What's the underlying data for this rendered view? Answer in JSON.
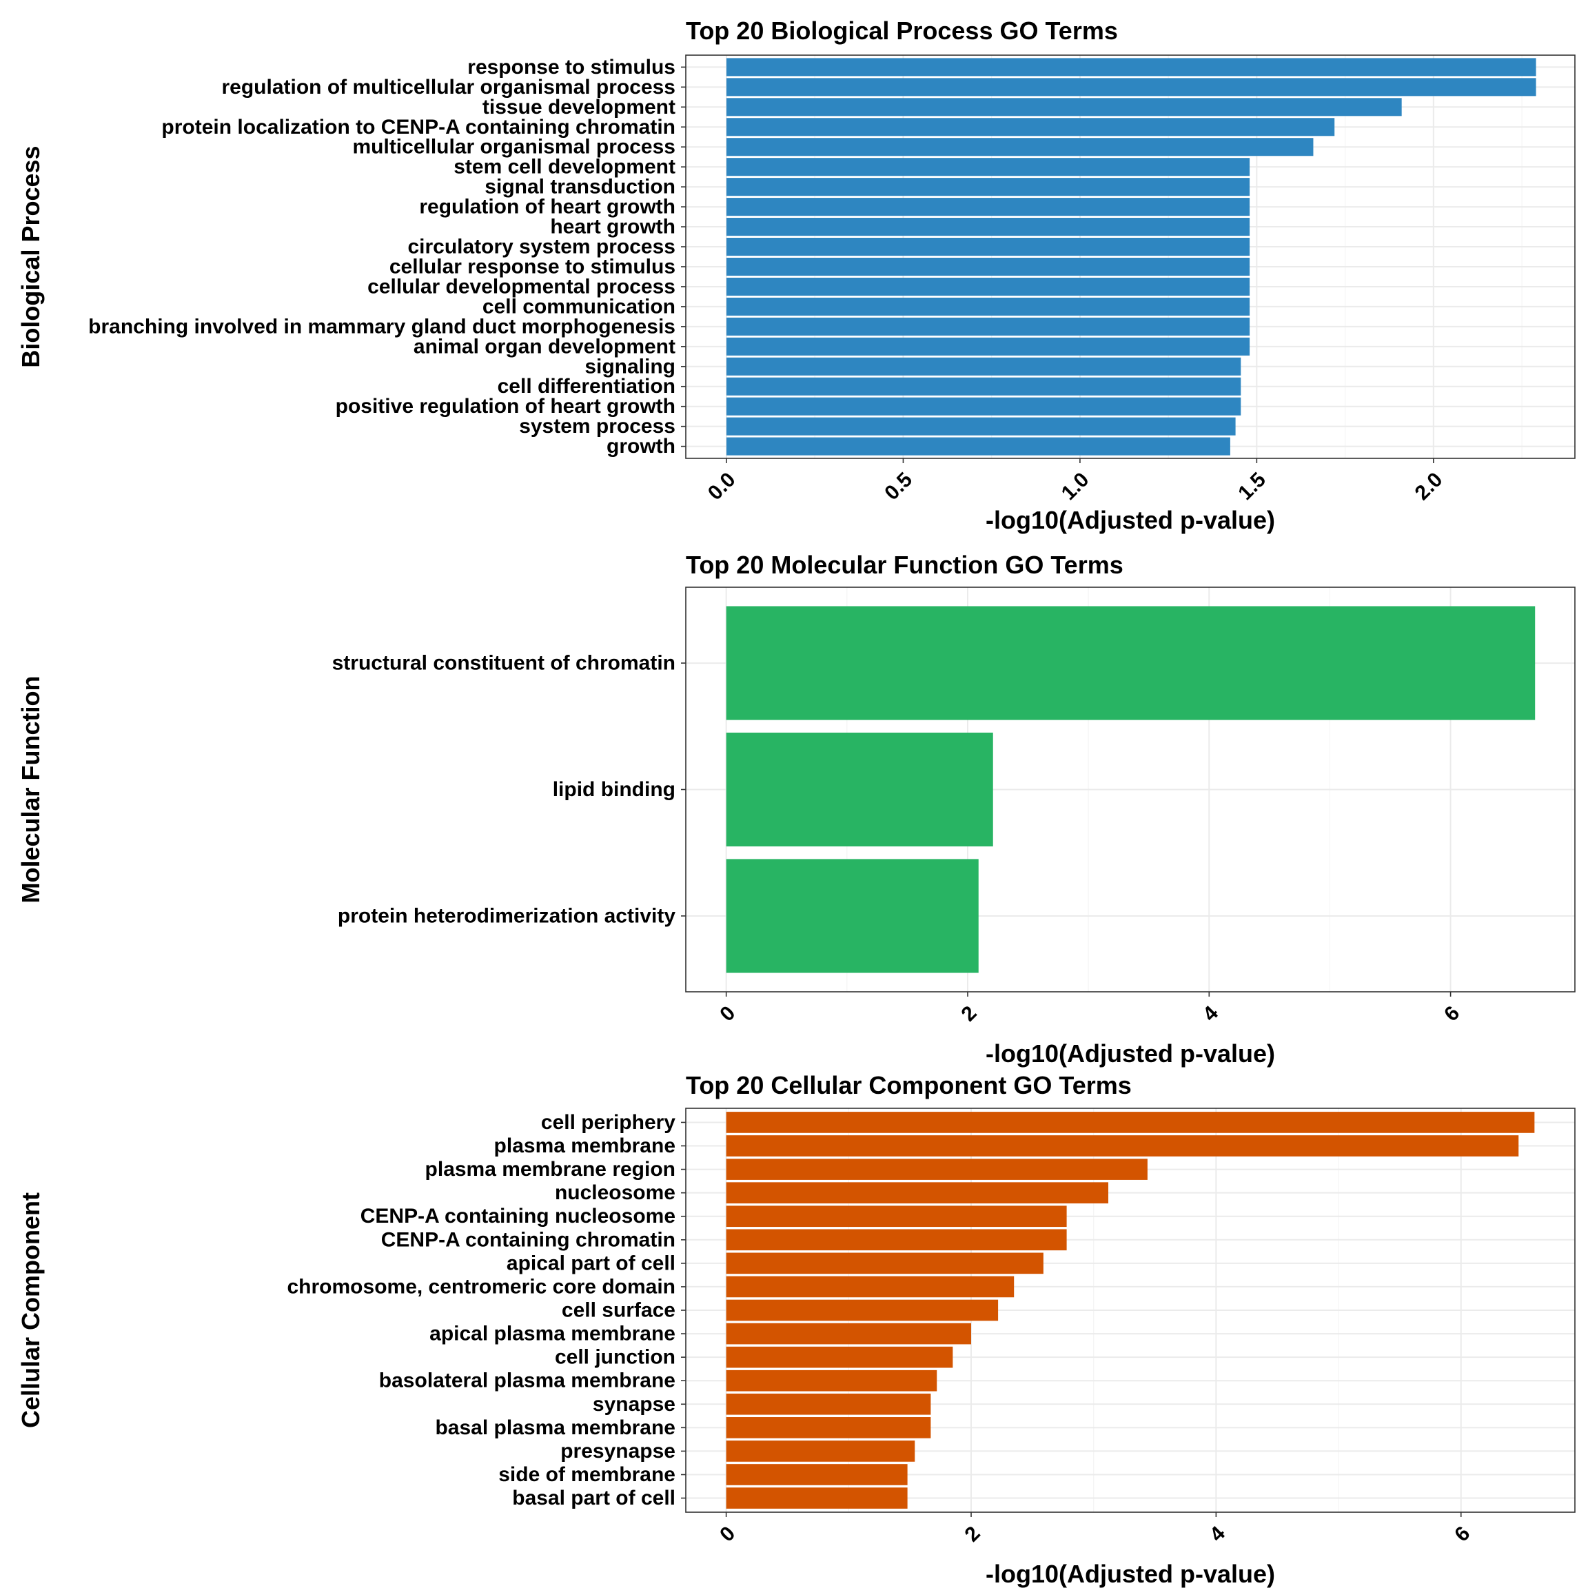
{
  "chart_data": [
    {
      "type": "bar",
      "orientation": "horizontal",
      "title": "Top 20 Biological Process GO Terms",
      "xlabel": "-log10(Adjusted p-value)",
      "ylabel": "Biological Process",
      "color": "#2e86c1",
      "xlim": [
        -0.115,
        2.4
      ],
      "xticks": [
        0,
        0.5,
        1,
        1.5,
        2
      ],
      "xtick_labels": [
        "0.0",
        "0.5",
        "1.0",
        "1.5",
        "2.0"
      ],
      "grid": true,
      "categories": [
        "response to stimulus",
        "regulation of multicellular organismal process",
        "tissue development",
        "protein localization to CENP-A containing chromatin",
        "multicellular organismal process",
        "stem cell development",
        "signal transduction",
        "regulation of heart growth",
        "heart growth",
        "circulatory system process",
        "cellular response to stimulus",
        "cellular developmental process",
        "cell communication",
        "branching involved in mammary gland duct morphogenesis",
        "animal organ development",
        "signaling",
        "cell differentiation",
        "positive regulation of heart growth",
        "system process",
        "growth"
      ],
      "values": [
        2.29,
        2.29,
        1.91,
        1.72,
        1.66,
        1.48,
        1.48,
        1.48,
        1.48,
        1.48,
        1.48,
        1.48,
        1.48,
        1.48,
        1.48,
        1.455,
        1.455,
        1.455,
        1.44,
        1.425
      ]
    },
    {
      "type": "bar",
      "orientation": "horizontal",
      "title": "Top 20 Molecular Function GO Terms",
      "xlabel": "-log10(Adjusted p-value)",
      "ylabel": "Molecular Function",
      "color": "#28b463",
      "xlim": [
        -0.335,
        7.03
      ],
      "xticks": [
        0,
        2,
        4,
        6
      ],
      "xtick_labels": [
        "0",
        "2",
        "4",
        "6"
      ],
      "grid": true,
      "categories": [
        "structural constituent of chromatin",
        "lipid binding",
        "protein heterodimerization activity"
      ],
      "values": [
        6.7,
        2.21,
        2.09
      ]
    },
    {
      "type": "bar",
      "orientation": "horizontal",
      "title": "Top 20 Cellular Component GO Terms",
      "xlabel": "-log10(Adjusted p-value)",
      "ylabel": "Cellular Component",
      "color": "#d35400",
      "xlim": [
        -0.33,
        6.93
      ],
      "xticks": [
        0,
        2,
        4,
        6
      ],
      "xtick_labels": [
        "0",
        "2",
        "4",
        "6"
      ],
      "grid": true,
      "categories": [
        "cell periphery",
        "plasma membrane",
        "plasma membrane region",
        "nucleosome",
        "CENP-A containing nucleosome",
        "CENP-A containing chromatin",
        "apical part of cell",
        "chromosome, centromeric core domain",
        "cell surface",
        "apical plasma membrane",
        "cell junction",
        "basolateral plasma membrane",
        "synapse",
        "basal plasma membrane",
        "presynapse",
        "side of membrane",
        "basal part of cell"
      ],
      "values": [
        6.6,
        6.47,
        3.44,
        3.12,
        2.78,
        2.78,
        2.59,
        2.35,
        2.22,
        2.0,
        1.85,
        1.72,
        1.67,
        1.67,
        1.54,
        1.48,
        1.48
      ]
    }
  ]
}
